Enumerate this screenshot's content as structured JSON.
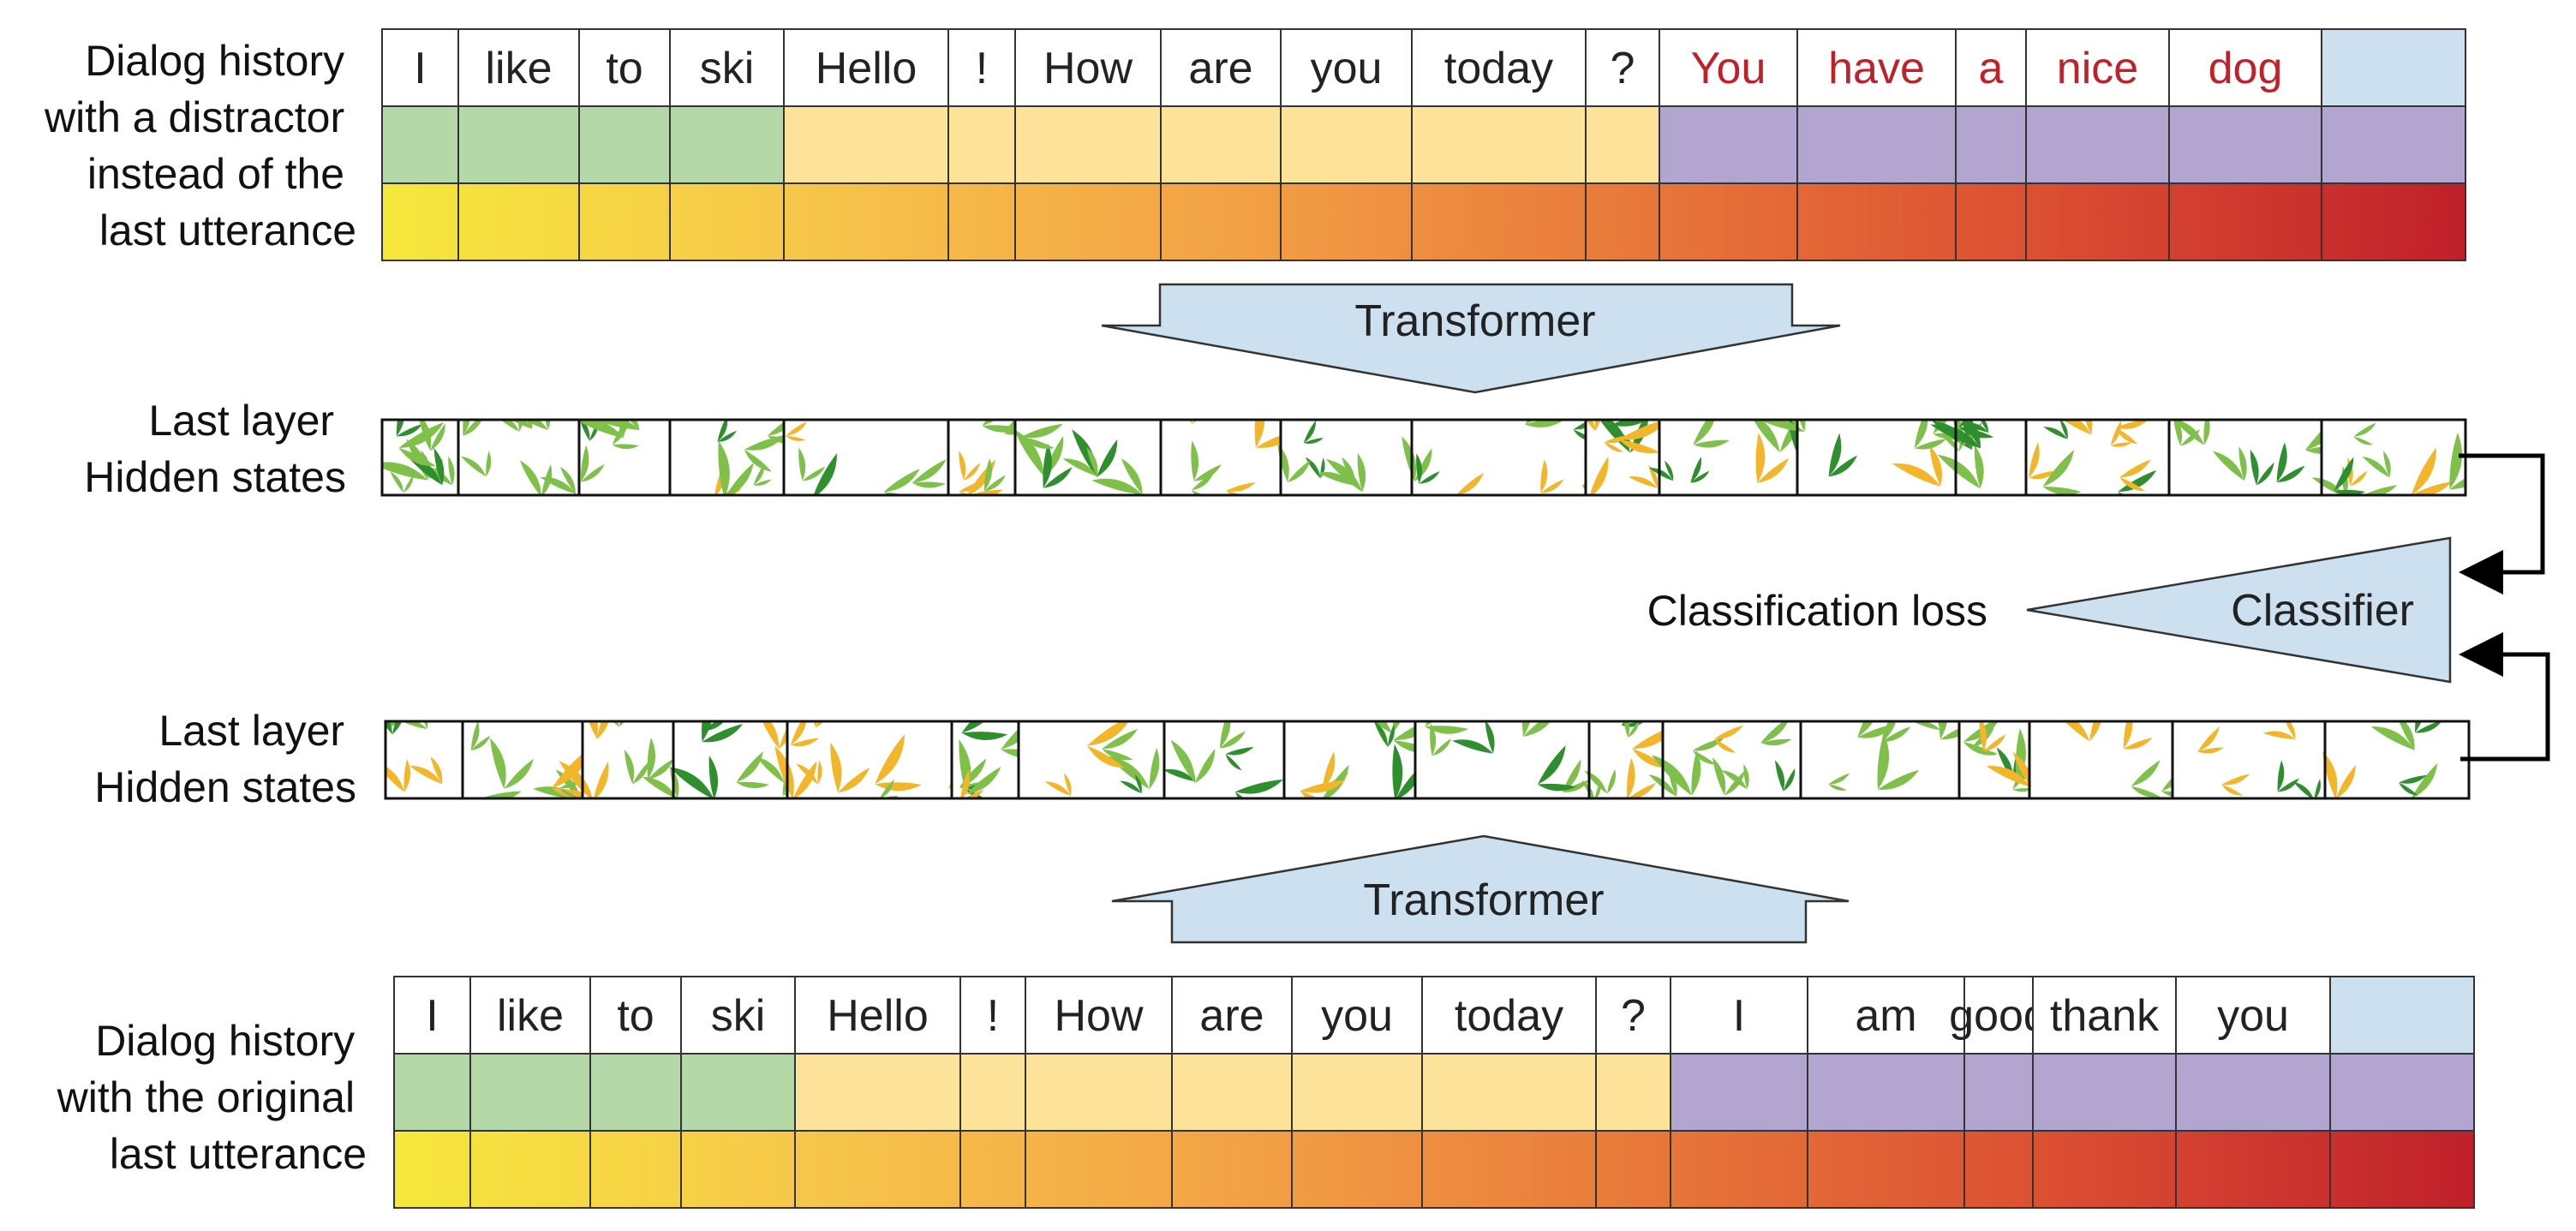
{
  "labels": {
    "top_row_lines": [
      "Dialog history",
      "with a distractor",
      "instead of the",
      "last utterance"
    ],
    "bottom_row_lines": [
      "Dialog history",
      "with the original",
      "last utterance"
    ],
    "hidden_top_lines": [
      "Last layer",
      "Hidden states"
    ],
    "hidden_bottom_lines": [
      "Last layer",
      "Hidden states"
    ]
  },
  "transformer_label": "Transformer",
  "classifier_label": "Classifier",
  "classification_loss_label": "Classification loss",
  "top_tokens": [
    {
      "text": "I",
      "segment": "speaker1",
      "distractor": false
    },
    {
      "text": "like",
      "segment": "speaker1",
      "distractor": false
    },
    {
      "text": "to",
      "segment": "speaker1",
      "distractor": false
    },
    {
      "text": "ski",
      "segment": "speaker1",
      "distractor": false
    },
    {
      "text": "Hello",
      "segment": "speaker2",
      "distractor": false
    },
    {
      "text": "!",
      "segment": "speaker2",
      "distractor": false
    },
    {
      "text": "How",
      "segment": "speaker2",
      "distractor": false
    },
    {
      "text": "are",
      "segment": "speaker2",
      "distractor": false
    },
    {
      "text": "you",
      "segment": "speaker2",
      "distractor": false
    },
    {
      "text": "today",
      "segment": "speaker2",
      "distractor": false
    },
    {
      "text": "?",
      "segment": "speaker2",
      "distractor": false
    },
    {
      "text": "You",
      "segment": "reply",
      "distractor": true
    },
    {
      "text": "have",
      "segment": "reply",
      "distractor": true
    },
    {
      "text": "a",
      "segment": "reply",
      "distractor": true
    },
    {
      "text": "nice",
      "segment": "reply",
      "distractor": true
    },
    {
      "text": "dog",
      "segment": "reply",
      "distractor": true
    },
    {
      "text": "",
      "segment": "reply",
      "distractor": false
    }
  ],
  "bottom_tokens": [
    {
      "text": "I",
      "segment": "speaker1",
      "distractor": false
    },
    {
      "text": "like",
      "segment": "speaker1",
      "distractor": false
    },
    {
      "text": "to",
      "segment": "speaker1",
      "distractor": false
    },
    {
      "text": "ski",
      "segment": "speaker1",
      "distractor": false
    },
    {
      "text": "Hello",
      "segment": "speaker2",
      "distractor": false
    },
    {
      "text": "!",
      "segment": "speaker2",
      "distractor": false
    },
    {
      "text": "How",
      "segment": "speaker2",
      "distractor": false
    },
    {
      "text": "are",
      "segment": "speaker2",
      "distractor": false
    },
    {
      "text": "you",
      "segment": "speaker2",
      "distractor": false
    },
    {
      "text": "today",
      "segment": "speaker2",
      "distractor": false
    },
    {
      "text": "?",
      "segment": "speaker2",
      "distractor": false
    },
    {
      "text": "I",
      "segment": "reply",
      "distractor": false
    },
    {
      "text": "am",
      "segment": "reply",
      "distractor": false
    },
    {
      "text": "good",
      "segment": "reply",
      "distractor": false
    },
    {
      "text": "thank",
      "segment": "reply",
      "distractor": false
    },
    {
      "text": "you",
      "segment": "reply",
      "distractor": false
    },
    {
      "text": "",
      "segment": "reply",
      "distractor": false
    }
  ],
  "colors": {
    "speaker1": "#b5d8a8",
    "speaker2": "#fde29a",
    "reply": "#b2a6d0",
    "special_token": "#cde0ef",
    "distractor_text": "#c0202a",
    "token_text": "#222222",
    "arrow_fill": "#cde0ef",
    "position_gradient": [
      "#f6e83c",
      "#f7c64a",
      "#f3a346",
      "#e8783a",
      "#db4e32",
      "#c0202a"
    ],
    "hidden_green_dark": "#2f8f2f",
    "hidden_green_light": "#7fc04a",
    "hidden_orange": "#f3b52a"
  }
}
